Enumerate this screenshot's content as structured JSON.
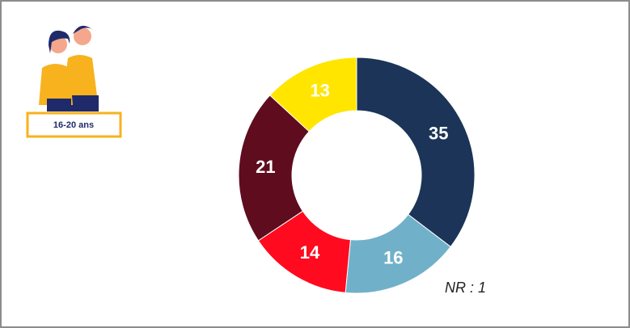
{
  "chart_data": {
    "type": "donut",
    "badge": "16-20 ans",
    "values": [
      35,
      16,
      14,
      21,
      13
    ],
    "colors": [
      "#1b3458",
      "#70b1c9",
      "#ff0a1e",
      "#5e0c1e",
      "#ffe500"
    ],
    "annotation": "NR : 1"
  }
}
